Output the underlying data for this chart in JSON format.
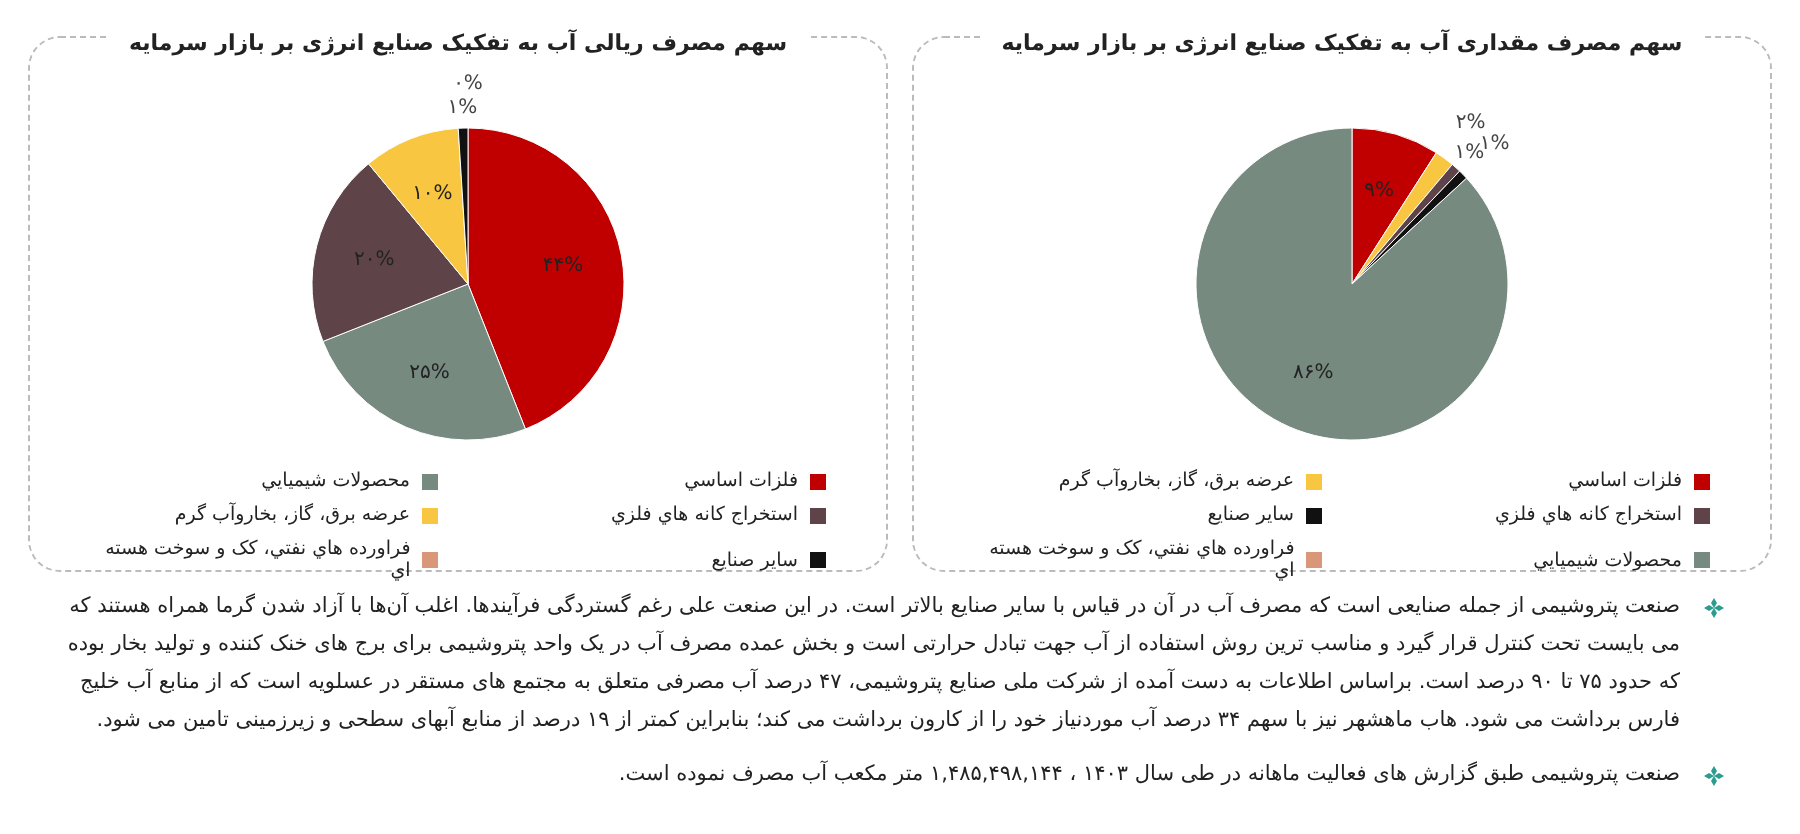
{
  "chart_data": [
    {
      "type": "pie",
      "title": "سهم مصرف ریالی آب به تفکیک صنایع انرژی بر بازار سرمایه",
      "categories": [
        "فلزات اساسي",
        "محصولات شيميايي",
        "استخراج كانه هاي فلزي",
        "عرضه برق، گاز، بخاروآب گرم",
        "سایر صنایع",
        "فراورده هاي نفتي، كک و سوخت هسته اي"
      ],
      "values": [
        44,
        25,
        20,
        10,
        1,
        0
      ],
      "colors": [
        "#c00000",
        "#768a80",
        "#5e4448",
        "#f8c640",
        "#111111",
        "#d9977a"
      ],
      "value_labels": [
        "۴۴%",
        "۲۵%",
        "۲۰%",
        "۱۰%",
        "۱%",
        "۰%"
      ],
      "legend": "bottom"
    },
    {
      "type": "pie",
      "title": "سهم مصرف مقداری آب به تفکیک صنایع انرژی بر بازار سرمایه",
      "categories": [
        "فلزات اساسي",
        "عرضه برق، گاز، بخاروآب گرم",
        "استخراج كانه هاي فلزي",
        "سایر صنایع",
        "محصولات شيميايي",
        "فراورده هاي نفتي، كک و سوخت هسته اي"
      ],
      "values": [
        9,
        2,
        1,
        1,
        86,
        0
      ],
      "colors": [
        "#c00000",
        "#f8c640",
        "#5e4448",
        "#111111",
        "#768a80",
        "#d9977a"
      ],
      "value_labels": [
        "۹%",
        "۲%",
        "۱%",
        "۱%",
        "۸۶%",
        null
      ],
      "legend": "bottom"
    },
    {
      "type": "other",
      "annotations": [
        "صنعت پتروشیمی از جمله صنایعی است که مصرف آب در آن در قیاس با سایر صنایع بالاتر است. در این صنعت علی رغم گستردگی فرآیندها. اغلب آن‌ها با آزاد شدن گرما همراه هستند که می بایست تحت کنترل قرار گیرد و مناسب ترین روش استفاده از آب جهت تبادل حرارتی است و بخش عمده مصرف آب در یک واحد پتروشیمی برای برج های خنک کننده و تولید بخار بوده که حدود ۷۵ تا ۹۰ درصد است. براساس اطلاعات به دست آمده از شرکت ملی صنایع پتروشیمی، ۴۷ درصد آب مصرفی متعلق به مجتمع های مستقر در عسلویه است که از منابع آب خلیج فارس برداشت می شود. هاب ماهشهر نیز با سهم ۳۴ درصد آب موردنیاز خود را از کارون برداشت می کند؛ بنابراین کمتر از ۱۹ درصد از منابع آبهای سطحی و زیرزمینی تامین می شود.",
        "صنعت پتروشیمی طبق گزارش های فعالیت ماهانه در طی سال ۱۴۰۳ ، ۱,۴۸۵,۴۹۸,۱۴۴ متر مکعب آب مصرف نموده است."
      ]
    }
  ]
}
